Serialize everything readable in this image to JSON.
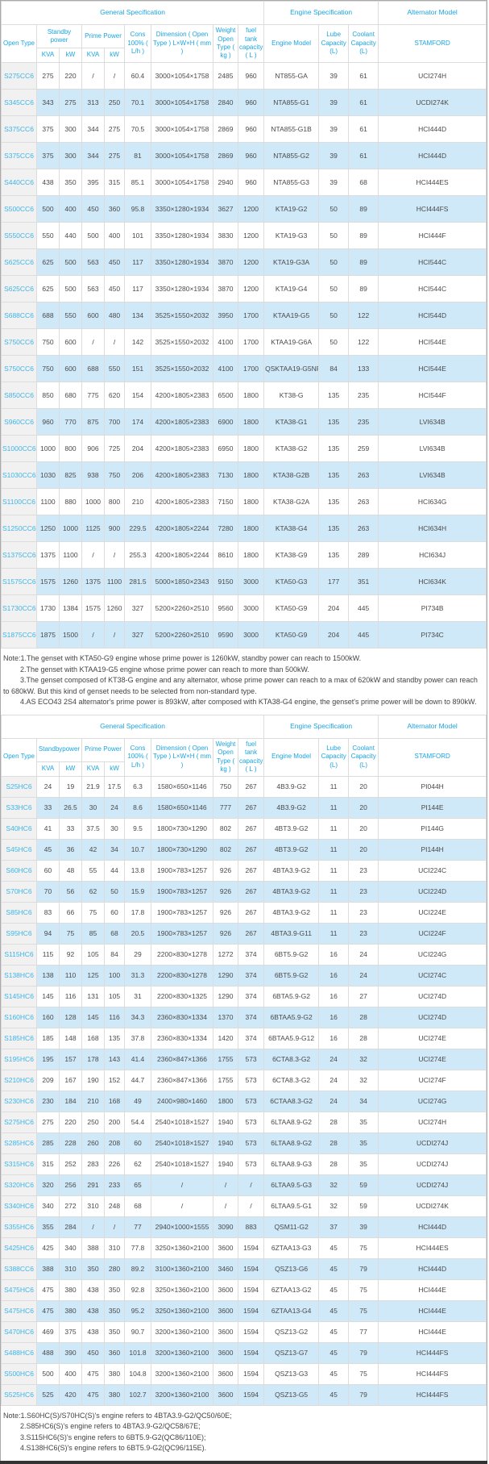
{
  "colors": {
    "header_blue": "#1ba4e0",
    "model_link_cyan": "#3fb4e6",
    "stripe_blue": "#cfe9f9",
    "first_col_gray": "#f1f1f1"
  },
  "table1": {
    "header": {
      "general": "General Specification",
      "engine": "Engine Specification",
      "alternator": "Alternator Model",
      "open_type": "Open Type",
      "standby": "Standby power",
      "prime": "Prime Power",
      "kva": "KVA",
      "kw": "kW",
      "cons": "Cons 100% ( L/h )",
      "dimension": "Dimension ( Open Type ) L×W×H ( mm )",
      "weight": "Weight Open Type ( kg )",
      "fuel": "fuel tank capacity ( L )",
      "engine_model": "Engine Model",
      "lube": "Lube Capacity (L)",
      "coolant": "Coolant Capacity (L)",
      "stamford": "STAMFORD"
    },
    "rows": [
      [
        "S275CC6",
        "275",
        "220",
        "/",
        "/",
        "60.4",
        "3000×1054×1758",
        "2485",
        "960",
        "NT855-GA",
        "39",
        "61",
        "UCI274H"
      ],
      [
        "S345CC6",
        "343",
        "275",
        "313",
        "250",
        "70.1",
        "3000×1054×1758",
        "2840",
        "960",
        "NTA855-G1",
        "39",
        "61",
        "UCDI274K"
      ],
      [
        "S375CC6",
        "375",
        "300",
        "344",
        "275",
        "70.5",
        "3000×1054×1758",
        "2869",
        "960",
        "NTA855-G1B",
        "39",
        "61",
        "HCI444D"
      ],
      [
        "S375CC6",
        "375",
        "300",
        "344",
        "275",
        "81",
        "3000×1054×1758",
        "2869",
        "960",
        "NTA855-G2",
        "39",
        "61",
        "HCI444D"
      ],
      [
        "S440CC6",
        "438",
        "350",
        "395",
        "315",
        "85.1",
        "3000×1054×1758",
        "2940",
        "960",
        "NTA855-G3",
        "39",
        "68",
        "HCI444ES"
      ],
      [
        "S500CC6",
        "500",
        "400",
        "450",
        "360",
        "95.8",
        "3350×1280×1934",
        "3627",
        "1200",
        "KTA19-G2",
        "50",
        "89",
        "HCI444FS"
      ],
      [
        "S550CC6",
        "550",
        "440",
        "500",
        "400",
        "101",
        "3350×1280×1934",
        "3830",
        "1200",
        "KTA19-G3",
        "50",
        "89",
        "HCI444F"
      ],
      [
        "S625CC6",
        "625",
        "500",
        "563",
        "450",
        "117",
        "3350×1280×1934",
        "3870",
        "1200",
        "KTA19-G3A",
        "50",
        "89",
        "HCI544C"
      ],
      [
        "S625CC6",
        "625",
        "500",
        "563",
        "450",
        "117",
        "3350×1280×1934",
        "3870",
        "1200",
        "KTA19-G4",
        "50",
        "89",
        "HCI544C"
      ],
      [
        "S688CC6",
        "688",
        "550",
        "600",
        "480",
        "134",
        "3525×1550×2032",
        "3950",
        "1700",
        "KTAA19-G5",
        "50",
        "122",
        "HCI544D"
      ],
      [
        "S750CC6",
        "750",
        "600",
        "/",
        "/",
        "142",
        "3525×1550×2032",
        "4100",
        "1700",
        "KTAA19-G6A",
        "50",
        "122",
        "HCI544E"
      ],
      [
        "S750CC6",
        "750",
        "600",
        "688",
        "550",
        "151",
        "3525×1550×2032",
        "4100",
        "1700",
        "QSKTAA19-G5NR2",
        "84",
        "133",
        "HCI544E"
      ],
      [
        "S850CC6",
        "850",
        "680",
        "775",
        "620",
        "154",
        "4200×1805×2383",
        "6500",
        "1800",
        "KT38-G",
        "135",
        "235",
        "HCI544F"
      ],
      [
        "S960CC6",
        "960",
        "770",
        "875",
        "700",
        "174",
        "4200×1805×2383",
        "6900",
        "1800",
        "KTA38-G1",
        "135",
        "235",
        "LVI634B"
      ],
      [
        "S1000CC6",
        "1000",
        "800",
        "906",
        "725",
        "204",
        "4200×1805×2383",
        "6950",
        "1800",
        "KTA38-G2",
        "135",
        "259",
        "LVI634B"
      ],
      [
        "S1030CC6",
        "1030",
        "825",
        "938",
        "750",
        "206",
        "4200×1805×2383",
        "7130",
        "1800",
        "KTA38-G2B",
        "135",
        "263",
        "LVI634B"
      ],
      [
        "S1100CC6",
        "1100",
        "880",
        "1000",
        "800",
        "210",
        "4200×1805×2383",
        "7150",
        "1800",
        "KTA38-G2A",
        "135",
        "263",
        "HCI634G"
      ],
      [
        "S1250CC6",
        "1250",
        "1000",
        "1125",
        "900",
        "229.5",
        "4200×1805×2244",
        "7280",
        "1800",
        "KTA38-G4",
        "135",
        "263",
        "HCI634H"
      ],
      [
        "S1375CC6",
        "1375",
        "1100",
        "/",
        "/",
        "255.3",
        "4200×1805×2244",
        "8610",
        "1800",
        "KTA38-G9",
        "135",
        "289",
        "HCI634J"
      ],
      [
        "S1575CC6",
        "1575",
        "1260",
        "1375",
        "1100",
        "281.5",
        "5000×1850×2343",
        "9150",
        "3000",
        "KTA50-G3",
        "177",
        "351",
        "HCI634K"
      ],
      [
        "S1730CC6",
        "1730",
        "1384",
        "1575",
        "1260",
        "327",
        "5200×2260×2510",
        "9560",
        "3000",
        "KTA50-G9",
        "204",
        "445",
        "PI734B"
      ],
      [
        "S1875CC6",
        "1875",
        "1500",
        "/",
        "/",
        "327",
        "5200×2260×2510",
        "9590",
        "3000",
        "KTA50-G9",
        "204",
        "445",
        "PI734C"
      ]
    ]
  },
  "note1": {
    "lines": [
      "Note:1.The genset with KTA50-G9 engine whose prime power is 1260kW, standby power can reach to 1500kW.",
      "2.The genset with KTAA19-G5 engine whose prime power can reach to more than 500kW.",
      "3.The genset composed of KT38-G engine and any alternator, whose prime power can reach to a max of 620kW and standby power can reach to 680kW. But this kind of genset needs to be selected from non-standard type.",
      "4.AS ECO43 2S4 alternator's prime power is 893kW, after composed with KTA38-G4 engine, the genset's prime power will be down to 890kW."
    ]
  },
  "table2": {
    "header": {
      "general": "General Specification",
      "engine": "Engine Specification",
      "alternator": "Alternator Model",
      "open_type": "Open Type",
      "standby": "Standbypower",
      "prime": "Prime Power",
      "kva": "KVA",
      "kw": "kW",
      "cons": "Cons 100% ( L/h )",
      "dimension": "Dimension ( Open Type ) L×W×H ( mm )",
      "weight": "Weight Open Type ( kg )",
      "fuel": "fuel tank capacity ( L )",
      "engine_model": "Engine Model",
      "lube": "Lube Capacity (L)",
      "coolant": "Coolant Capacity (L)",
      "stamford": "STAMFORD"
    },
    "rows": [
      [
        "S25HC6",
        "24",
        "19",
        "21.9",
        "17.5",
        "6.3",
        "1580×650×1146",
        "750",
        "267",
        "4B3.9-G2",
        "11",
        "20",
        "PI044H"
      ],
      [
        "S33HC6",
        "33",
        "26.5",
        "30",
        "24",
        "8.6",
        "1580×650×1146",
        "777",
        "267",
        "4B3.9-G2",
        "11",
        "20",
        "PI144E"
      ],
      [
        "S40HC6",
        "41",
        "33",
        "37.5",
        "30",
        "9.5",
        "1800×730×1290",
        "802",
        "267",
        "4BT3.9-G2",
        "11",
        "20",
        "PI144G"
      ],
      [
        "S45HC6",
        "45",
        "36",
        "42",
        "34",
        "10.7",
        "1800×730×1290",
        "802",
        "267",
        "4BT3.9-G2",
        "11",
        "20",
        "PI144H"
      ],
      [
        "S60HC6",
        "60",
        "48",
        "55",
        "44",
        "13.8",
        "1900×783×1257",
        "926",
        "267",
        "4BTA3.9-G2",
        "11",
        "23",
        "UCI224C"
      ],
      [
        "S70HC6",
        "70",
        "56",
        "62",
        "50",
        "15.9",
        "1900×783×1257",
        "926",
        "267",
        "4BTA3.9-G2",
        "11",
        "23",
        "UCI224D"
      ],
      [
        "S85HC6",
        "83",
        "66",
        "75",
        "60",
        "17.8",
        "1900×783×1257",
        "926",
        "267",
        "4BTA3.9-G2",
        "11",
        "23",
        "UCI224E"
      ],
      [
        "S95HC6",
        "94",
        "75",
        "85",
        "68",
        "20.5",
        "1900×783×1257",
        "926",
        "267",
        "4BTA3.9-G11",
        "11",
        "23",
        "UCI224F"
      ],
      [
        "S115HC6",
        "115",
        "92",
        "105",
        "84",
        "29",
        "2200×830×1278",
        "1272",
        "374",
        "6BT5.9-G2",
        "16",
        "24",
        "UCI224G"
      ],
      [
        "S138HC6",
        "138",
        "110",
        "125",
        "100",
        "31.3",
        "2200×830×1278",
        "1290",
        "374",
        "6BT5.9-G2",
        "16",
        "24",
        "UCI274C"
      ],
      [
        "S145HC6",
        "145",
        "116",
        "131",
        "105",
        "31",
        "2200×830×1325",
        "1290",
        "374",
        "6BTA5.9-G2",
        "16",
        "27",
        "UCI274D"
      ],
      [
        "S160HC6",
        "160",
        "128",
        "145",
        "116",
        "34.3",
        "2360×830×1334",
        "1370",
        "374",
        "6BTAA5.9-G2",
        "16",
        "28",
        "UCI274D"
      ],
      [
        "S185HC6",
        "185",
        "148",
        "168",
        "135",
        "37.8",
        "2360×830×1334",
        "1420",
        "374",
        "6BTAA5.9-G12",
        "16",
        "28",
        "UCI274E"
      ],
      [
        "S195HC6",
        "195",
        "157",
        "178",
        "143",
        "41.4",
        "2360×847×1366",
        "1755",
        "573",
        "6CTA8.3-G2",
        "24",
        "32",
        "UCI274E"
      ],
      [
        "S210HC6",
        "209",
        "167",
        "190",
        "152",
        "44.7",
        "2360×847×1366",
        "1755",
        "573",
        "6CTA8.3-G2",
        "24",
        "32",
        "UCI274F"
      ],
      [
        "S230HC6",
        "230",
        "184",
        "210",
        "168",
        "49",
        "2400×980×1460",
        "1800",
        "573",
        "6CTAA8.3-G2",
        "24",
        "34",
        "UCI274G"
      ],
      [
        "S275HC6",
        "275",
        "220",
        "250",
        "200",
        "54.4",
        "2540×1018×1527",
        "1940",
        "573",
        "6LTAA8.9-G2",
        "28",
        "35",
        "UCI274H"
      ],
      [
        "S285HC6",
        "285",
        "228",
        "260",
        "208",
        "60",
        "2540×1018×1527",
        "1940",
        "573",
        "6LTAA8.9-G2",
        "28",
        "35",
        "UCDI274J"
      ],
      [
        "S315HC6",
        "315",
        "252",
        "283",
        "226",
        "62",
        "2540×1018×1527",
        "1940",
        "573",
        "6LTAA8.9-G3",
        "28",
        "35",
        "UCDI274J"
      ],
      [
        "S320HC6",
        "320",
        "256",
        "291",
        "233",
        "65",
        "/",
        "/",
        "/",
        "6LTAA9.5-G3",
        "32",
        "59",
        "UCDI274J"
      ],
      [
        "S340HC6",
        "340",
        "272",
        "310",
        "248",
        "68",
        "/",
        "/",
        "/",
        "6LTAA9.5-G1",
        "32",
        "59",
        "UCDI274K"
      ],
      [
        "S355HC6",
        "355",
        "284",
        "/",
        "/",
        "77",
        "2940×1000×1555",
        "3090",
        "883",
        "QSM11-G2",
        "37",
        "39",
        "HCI444D"
      ],
      [
        "S425HC6",
        "425",
        "340",
        "388",
        "310",
        "77.8",
        "3250×1360×2100",
        "3600",
        "1594",
        "6ZTAA13-G3",
        "45",
        "75",
        "HCI444ES"
      ],
      [
        "S388CC6",
        "388",
        "310",
        "350",
        "280",
        "89.2",
        "3100×1360×2100",
        "3460",
        "1594",
        "QSZ13-G6",
        "45",
        "79",
        "HCI444D"
      ],
      [
        "S475HC6",
        "475",
        "380",
        "438",
        "350",
        "92.8",
        "3250×1360×2100",
        "3600",
        "1594",
        "6ZTAA13-G2",
        "45",
        "75",
        "HCI444E"
      ],
      [
        "S475HC6",
        "475",
        "380",
        "438",
        "350",
        "95.2",
        "3250×1360×2100",
        "3600",
        "1594",
        "6ZTAA13-G4",
        "45",
        "75",
        "HCI444E"
      ],
      [
        "S470HC6",
        "469",
        "375",
        "438",
        "350",
        "90.7",
        "3200×1360×2100",
        "3600",
        "1594",
        "QSZ13-G2",
        "45",
        "77",
        "HCI444E"
      ],
      [
        "S488HC6",
        "488",
        "390",
        "450",
        "360",
        "101.8",
        "3200×1360×2100",
        "3600",
        "1594",
        "QSZ13-G7",
        "45",
        "79",
        "HCI444FS"
      ],
      [
        "S500HC6",
        "500",
        "400",
        "475",
        "380",
        "104.8",
        "3200×1360×2100",
        "3600",
        "1594",
        "QSZ13-G3",
        "45",
        "75",
        "HCI444FS"
      ],
      [
        "S525HC6",
        "525",
        "420",
        "475",
        "380",
        "102.7",
        "3200×1360×2100",
        "3600",
        "1594",
        "QSZ13-G5",
        "45",
        "79",
        "HCI444FS"
      ]
    ]
  },
  "note2": {
    "lines": [
      "Note:1.S60HC(S)/S70HC(S)'s engine refers to 4BTA3.9-G2/QC50/60E;",
      "2.S85HC6(S)'s engine refers to 4BTA3.9-G2/QC58/67E;",
      "3.S115HC6(S)'s engine refers to 6BT5.9-G2(QC86/110E);",
      "4.S138HC6(S)'s engine refers to 6BT5.9-G2(QC96/115E)."
    ]
  }
}
